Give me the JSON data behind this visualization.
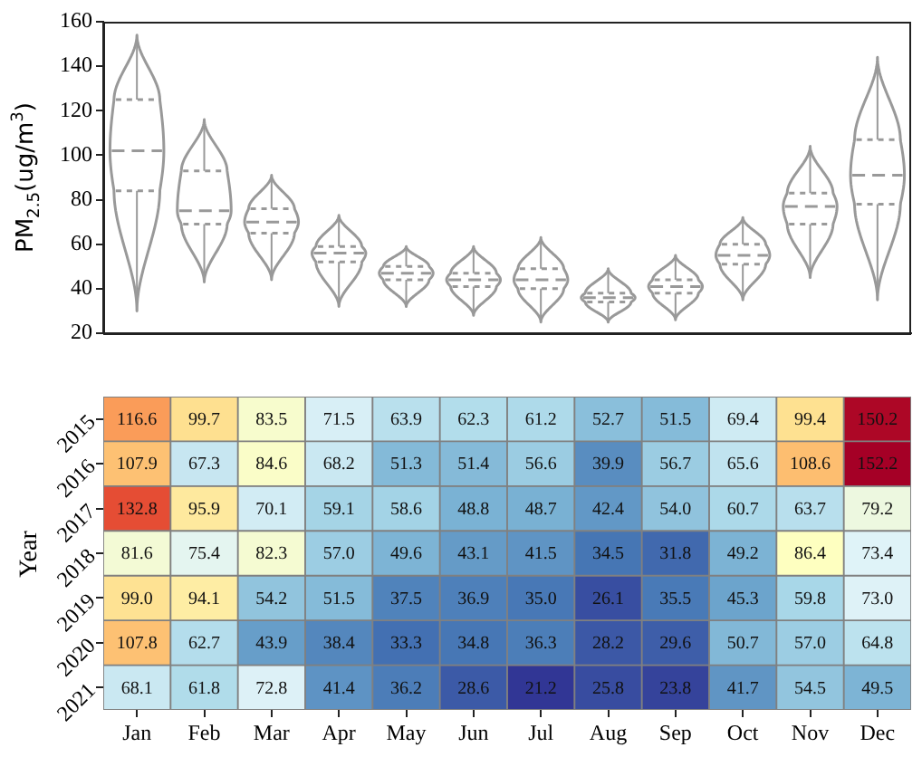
{
  "chart_data": [
    {
      "type": "box",
      "categories": [
        null,
        null,
        null,
        null,
        null,
        null,
        null,
        null,
        null,
        null,
        null,
        null
      ],
      "ylabel": "PM$_{2.5}$(ug/m$^{3}$)",
      "ylim": [
        20,
        160
      ],
      "yticks": [
        20,
        40,
        60,
        80,
        100,
        120,
        140,
        160
      ],
      "series": [
        {
          "color": "#999999",
          "boxes": [
            {
              "low": 30,
              "q1": 84,
              "median": 102,
              "q3": 125,
              "high": 154
            },
            {
              "low": 43,
              "q1": 69,
              "median": 75,
              "q3": 93,
              "high": 116
            },
            {
              "low": 44,
              "q1": 65,
              "median": 70,
              "q3": 76,
              "high": 91
            },
            {
              "low": 32,
              "q1": 52,
              "median": 56,
              "q3": 59,
              "high": 73
            },
            {
              "low": 32,
              "q1": 44,
              "median": 47,
              "q3": 50,
              "high": 59
            },
            {
              "low": 28,
              "q1": 41,
              "median": 44,
              "q3": 47,
              "high": 59
            },
            {
              "low": 25,
              "q1": 40,
              "median": 44,
              "q3": 49,
              "high": 63
            },
            {
              "low": 25,
              "q1": 34,
              "median": 36,
              "q3": 38,
              "high": 49
            },
            {
              "low": 26,
              "q1": 38,
              "median": 41,
              "q3": 44,
              "high": 55
            },
            {
              "low": 35,
              "q1": 51,
              "median": 55,
              "q3": 60,
              "high": 72
            },
            {
              "low": 45,
              "q1": 69,
              "median": 77,
              "q3": 83,
              "high": 104
            },
            {
              "low": 35,
              "q1": 78,
              "median": 91,
              "q3": 107,
              "high": 144
            }
          ]
        }
      ]
    },
    {
      "type": "heatmap",
      "categories": [
        "Jan",
        "Feb",
        "Mar",
        "Apr",
        "May",
        "Jun",
        "Jul",
        "Aug",
        "Sep",
        "Oct",
        "Nov",
        "Dec"
      ],
      "y_categories": [
        "2015",
        "2016",
        "2017",
        "2018",
        "2019",
        "2020",
        "2021"
      ],
      "ylabel": "Year",
      "cells": [
        [
          116.6,
          99.7,
          83.5,
          71.5,
          63.9,
          62.3,
          61.2,
          52.7,
          51.5,
          69.4,
          99.4,
          150.2
        ],
        [
          107.9,
          67.3,
          84.6,
          68.2,
          51.3,
          51.4,
          56.6,
          39.9,
          56.7,
          65.6,
          108.6,
          152.2
        ],
        [
          132.8,
          95.9,
          70.1,
          59.1,
          58.6,
          48.8,
          48.7,
          42.4,
          54.0,
          60.7,
          63.7,
          79.2
        ],
        [
          81.6,
          75.4,
          82.3,
          57.0,
          49.6,
          43.1,
          41.5,
          34.5,
          31.8,
          49.2,
          86.4,
          73.4
        ],
        [
          99.0,
          94.1,
          54.2,
          51.5,
          37.5,
          36.9,
          35.0,
          26.1,
          35.5,
          45.3,
          59.8,
          73.0
        ],
        [
          107.8,
          62.7,
          43.9,
          38.4,
          33.3,
          34.8,
          36.3,
          28.2,
          29.6,
          50.7,
          57.0,
          64.8
        ],
        [
          68.1,
          61.8,
          72.8,
          41.4,
          36.2,
          28.6,
          21.2,
          25.8,
          23.8,
          41.7,
          54.5,
          49.5
        ]
      ],
      "cell_labels": [
        [
          "116.6",
          "99.7",
          "83.5",
          "71.5",
          "63.9",
          "62.3",
          "61.2",
          "52.7",
          "51.5",
          "69.4",
          "99.4",
          "150.2"
        ],
        [
          "107.9",
          "67.3",
          "84.6",
          "68.2",
          "51.3",
          "51.4",
          "56.6",
          "39.9",
          "56.7",
          "65.6",
          "108.6",
          "152.2"
        ],
        [
          "132.8",
          "95.9",
          "70.1",
          "59.1",
          "58.6",
          "48.8",
          "48.7",
          "42.4",
          "54.0",
          "60.7",
          "63.7",
          "79.2"
        ],
        [
          "81.6",
          "75.4",
          "82.3",
          "57.0",
          "49.6",
          "43.1",
          "41.5",
          "34.5",
          "31.8",
          "49.2",
          "86.4",
          "73.4"
        ],
        [
          "99.0",
          "94.1",
          "54.2",
          "51.5",
          "37.5",
          "36.9",
          "35.0",
          "26.1",
          "35.5",
          "45.3",
          "59.8",
          "73.0"
        ],
        [
          "107.8",
          "62.7",
          "43.9",
          "38.4",
          "33.3",
          "34.8",
          "36.3",
          "28.2",
          "29.6",
          "50.7",
          "57.0",
          "64.8"
        ],
        [
          "68.1",
          "61.8",
          "72.8",
          "41.4",
          "36.2",
          "28.6",
          "21.2",
          "25.8",
          "23.8",
          "41.7",
          "54.5",
          "49.5"
        ]
      ]
    }
  ]
}
